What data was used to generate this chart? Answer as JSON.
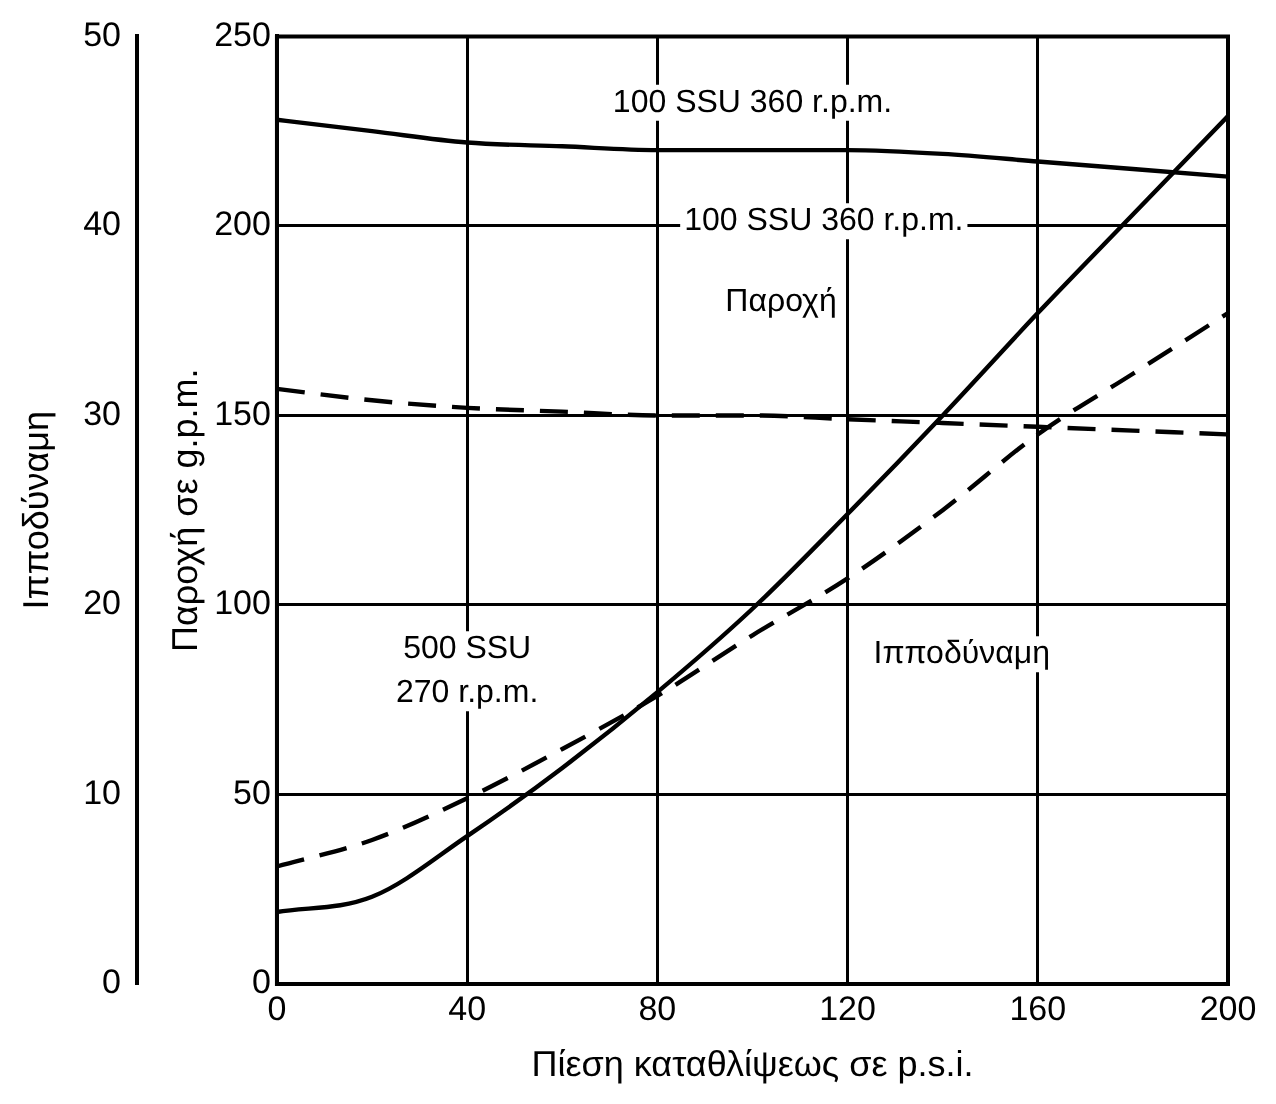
{
  "chart_data": {
    "type": "line",
    "xlabel": "Πίεση καταθλίψεως σε p.s.i.",
    "ylabel": "Ιπποδύναμη",
    "y2label": "Παροχή σε g.p.m.",
    "x": [
      0,
      20,
      40,
      60,
      80,
      100,
      120,
      140,
      160,
      180,
      200
    ],
    "xlim": [
      0,
      200
    ],
    "xticks": [
      0,
      40,
      80,
      120,
      160,
      200
    ],
    "ylim": [
      0,
      50
    ],
    "yticks": [
      0,
      10,
      20,
      30,
      40,
      50
    ],
    "y2lim": [
      0,
      250
    ],
    "y2ticks": [
      0,
      50,
      100,
      150,
      200,
      250
    ],
    "grid": true,
    "legend": false,
    "marker": "none",
    "series": [
      {
        "color": "#000000",
        "line_style": "solid",
        "axis": "y2",
        "values": [
          228,
          225,
          222,
          221,
          220,
          220,
          220,
          219,
          217,
          215,
          213
        ]
      },
      {
        "color": "#000000",
        "line_style": "dashed",
        "axis": "y2",
        "values": [
          157,
          154,
          152,
          151,
          150,
          150,
          149,
          148,
          147,
          146,
          145
        ]
      },
      {
        "color": "#000000",
        "line_style": "solid",
        "values": [
          3.8,
          4.6,
          7.8,
          11.4,
          15.4,
          19.8,
          24.8,
          30,
          35.4,
          40.6,
          45.8
        ]
      },
      {
        "color": "#000000",
        "line_style": "dashed",
        "values": [
          6.2,
          7.6,
          9.8,
          12.4,
          15.2,
          18.4,
          21.4,
          25,
          29,
          32.2,
          35.4
        ]
      }
    ],
    "annotations": [
      "100 SSU 360 r.p.m.",
      "100 SSU 360 r.p.m.",
      "Παροχή",
      "500 SSU\n270 r.p.m.",
      "Ιπποδύναμη"
    ]
  }
}
